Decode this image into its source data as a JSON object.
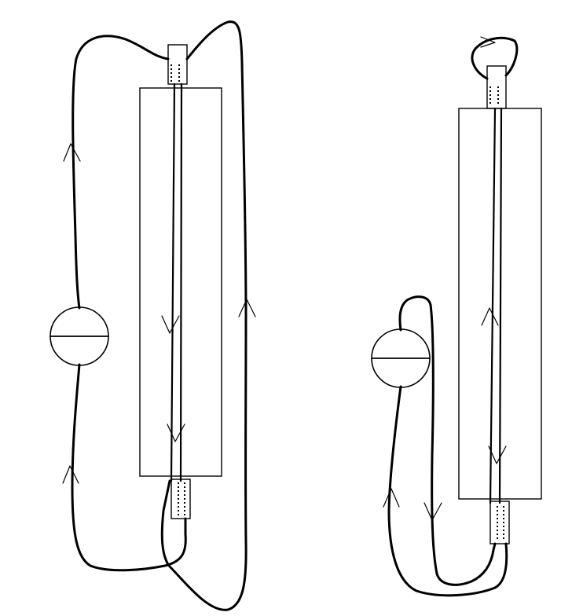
{
  "colors": {
    "background": "#ffffff",
    "stroke": "#000000"
  },
  "icons": {
    "meter": "ammeter-circle-icon",
    "flow_arrow": "chevron-arrow-icon"
  }
}
